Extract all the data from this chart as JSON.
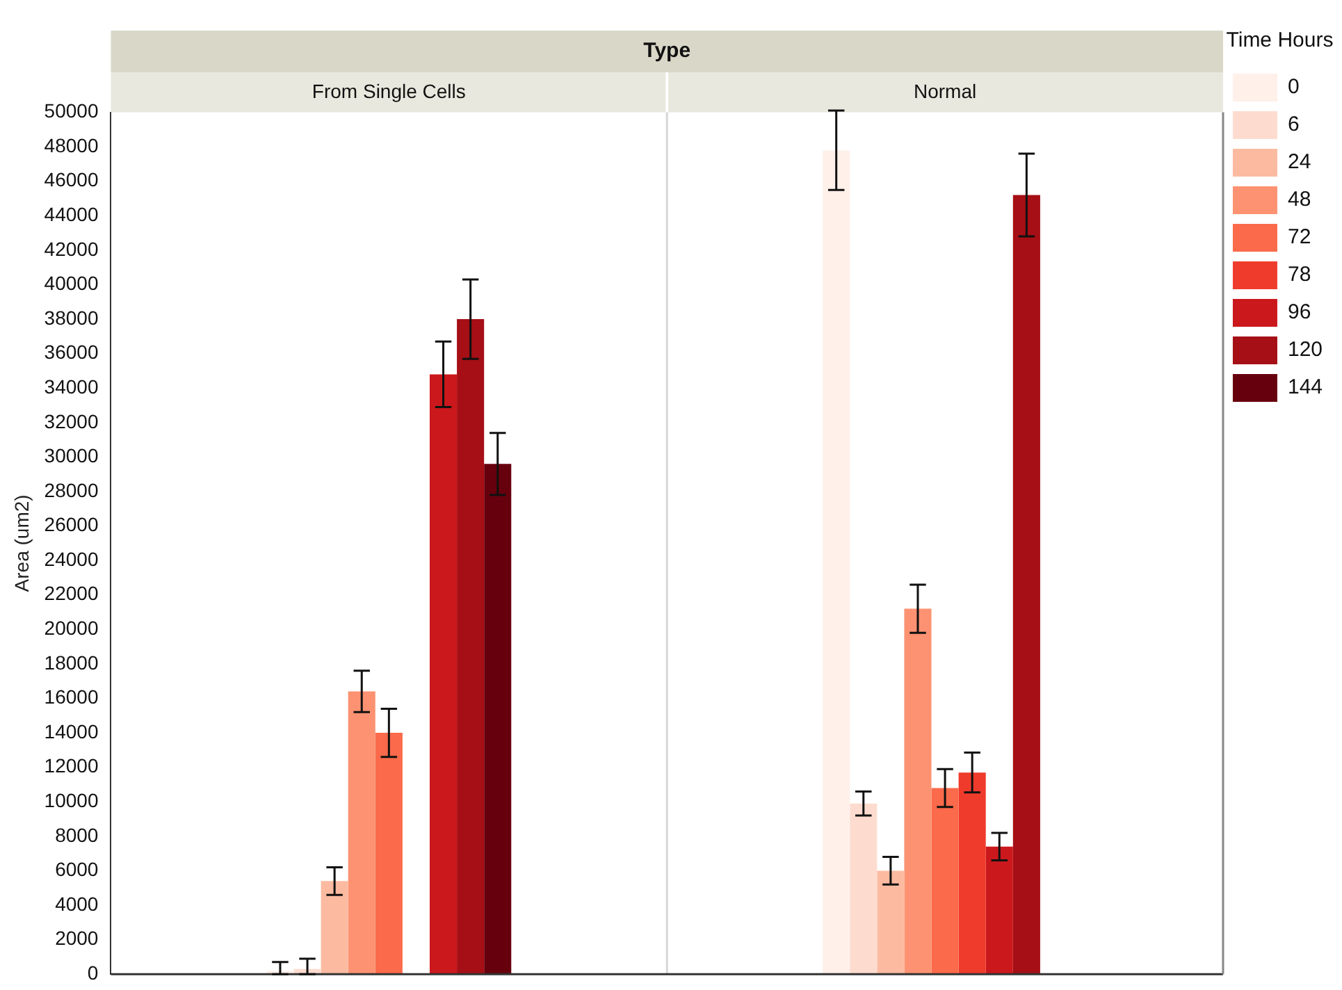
{
  "chart_data": {
    "type": "bar",
    "title": "Type",
    "ylabel": "Area (um2)",
    "legend_title": "Time Hours",
    "categories": [
      "From Single Cells",
      "Normal"
    ],
    "series": [
      {
        "name": "0",
        "color": "#fff0ea",
        "values": [
          200,
          47800
        ],
        "errors": [
          [
            0,
            700
          ],
          2300
        ]
      },
      {
        "name": "6",
        "color": "#fddccf",
        "values": [
          300,
          9900
        ],
        "errors": [
          [
            0,
            900
          ],
          700
        ]
      },
      {
        "name": "24",
        "color": "#fcbba1",
        "values": [
          5400,
          6000
        ],
        "errors": [
          800,
          800
        ]
      },
      {
        "name": "48",
        "color": "#fc9272",
        "values": [
          16400,
          21200
        ],
        "errors": [
          1200,
          1400
        ]
      },
      {
        "name": "72",
        "color": "#fb6a4a",
        "values": [
          14000,
          10800
        ],
        "errors": [
          1400,
          1100
        ]
      },
      {
        "name": "78",
        "color": "#ef3b2c",
        "values": [
          null,
          11700
        ],
        "errors": [
          null,
          1150
        ]
      },
      {
        "name": "96",
        "color": "#cb181d",
        "values": [
          34800,
          7400
        ],
        "errors": [
          1900,
          800
        ]
      },
      {
        "name": "120",
        "color": "#a50f15",
        "values": [
          38000,
          45200
        ],
        "errors": [
          2300,
          2400
        ]
      },
      {
        "name": "144",
        "color": "#67000d",
        "values": [
          29600,
          null
        ],
        "errors": [
          1800,
          null
        ]
      }
    ],
    "ylim": [
      0,
      50000
    ],
    "yticks": [
      0,
      2000,
      4000,
      6000,
      8000,
      10000,
      12000,
      14000,
      16000,
      18000,
      20000,
      22000,
      24000,
      26000,
      28000,
      30000,
      32000,
      34000,
      36000,
      38000,
      40000,
      42000,
      44000,
      46000,
      48000,
      50000
    ],
    "grid": false,
    "legend": "top right"
  }
}
